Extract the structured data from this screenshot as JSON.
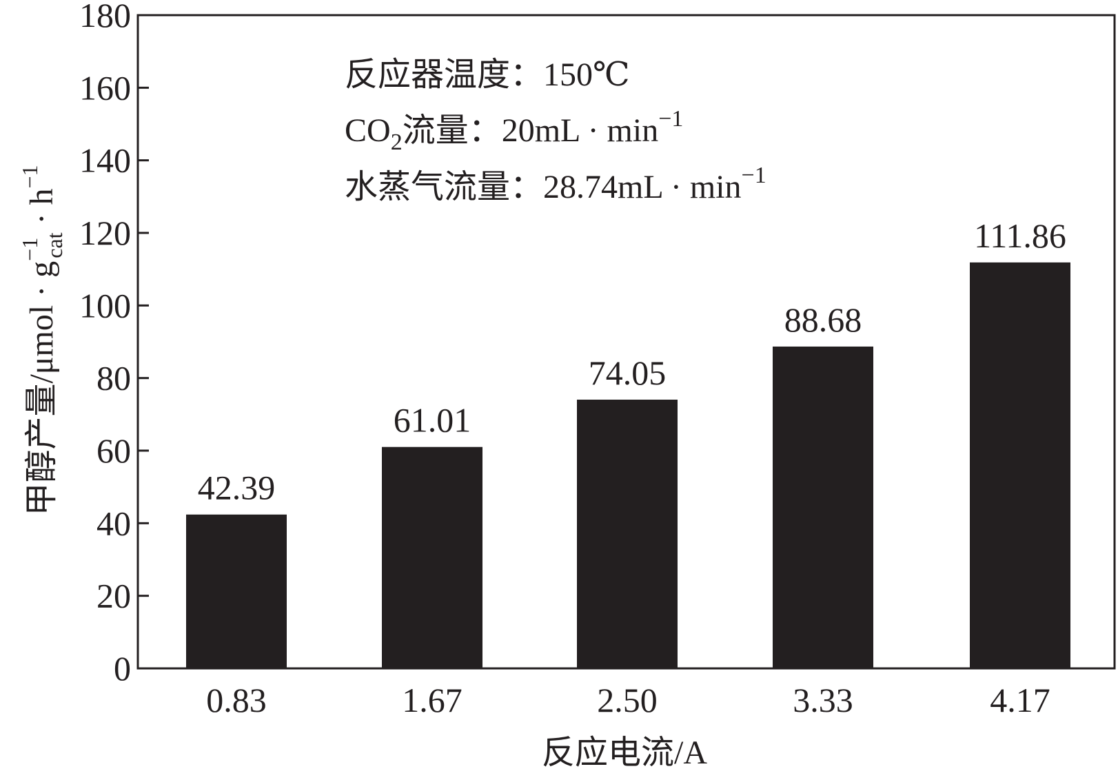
{
  "chart_data": {
    "type": "bar",
    "categories": [
      "0.83",
      "1.67",
      "2.50",
      "3.33",
      "4.17"
    ],
    "values": [
      42.39,
      61.01,
      74.05,
      88.68,
      111.86
    ],
    "data_labels": [
      "42.39",
      "61.01",
      "74.05",
      "88.68",
      "111.86"
    ],
    "xlabel": "反应电流/A",
    "ylabel": {
      "main": "甲醇产量/μmol · g",
      "g_superscript": "−1",
      "g_subscript": "cat",
      "h_part": " · h",
      "h_superscript": "−1"
    },
    "ylim": [
      0,
      180
    ],
    "yticks": [
      "0",
      "20",
      "40",
      "60",
      "80",
      "100",
      "120",
      "140",
      "160",
      "180"
    ],
    "ytick_values": [
      0,
      20,
      40,
      60,
      80,
      100,
      120,
      140,
      160,
      180
    ],
    "grid": false,
    "bar_color": "#231f20",
    "annotations": {
      "line1": "反应器温度：150℃",
      "line2": {
        "co": "CO",
        "sub": "2",
        "rest": "流量：20mL · min",
        "sup": "−1"
      },
      "line3": {
        "text": "水蒸气流量：28.74mL · min",
        "sup": "−1"
      }
    }
  }
}
